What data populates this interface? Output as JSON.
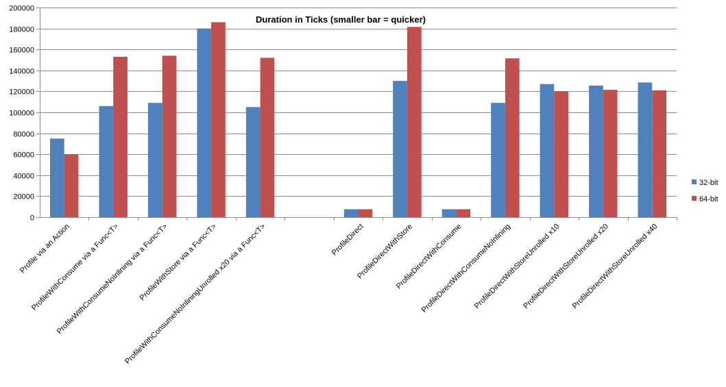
{
  "chart_data": {
    "type": "bar",
    "title": "Duration in Ticks (smaller bar = quicker)",
    "xlabel": "",
    "ylabel": "",
    "ylim": [
      0,
      200000
    ],
    "yticks": [
      0,
      20000,
      40000,
      60000,
      80000,
      100000,
      120000,
      140000,
      160000,
      180000,
      200000
    ],
    "grid": true,
    "legend_position": "right",
    "categories": [
      "Profile via an Action",
      "ProfileWithConsume via a Func<T>",
      "ProfileWithConsumeNoInlining via a Func<T>",
      "ProfileWithStore via a Func<T>",
      "ProfileWithConsumeNoInliningUnrolled x20 via a Func<T>",
      "",
      "ProfileDirect",
      "ProfileDirectWithStore",
      "ProfileDirectWithConsume",
      "ProfileDirectWithConsumeNoInlining",
      "ProfileDirectWithStoreUnrolled x10",
      "ProfileDirectWithStoreUnrolled x20",
      "ProfileDirectWithStoreUnrolled x40"
    ],
    "series": [
      {
        "name": "32-bit",
        "color": "#4F81BD",
        "values": [
          75000,
          106000,
          109000,
          180000,
          105000,
          null,
          7500,
          130000,
          7500,
          109000,
          127000,
          125500,
          128500
        ]
      },
      {
        "name": "64-bit",
        "color": "#C0504D",
        "values": [
          60000,
          153000,
          154000,
          186000,
          152000,
          null,
          7500,
          181500,
          7500,
          151500,
          120000,
          121500,
          121000
        ]
      }
    ]
  }
}
